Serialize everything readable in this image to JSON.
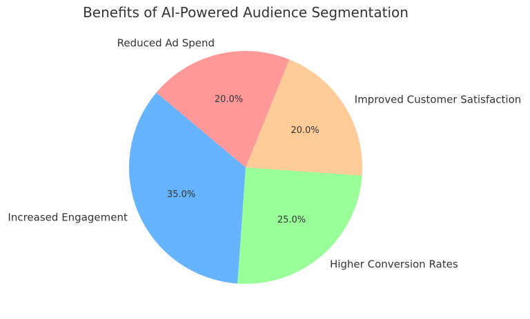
{
  "chart_data": {
    "type": "pie",
    "title": "Benefits of AI-Powered Audience Segmentation",
    "start_angle_deg": 140,
    "direction": "counterclockwise",
    "slices": [
      {
        "label": "Increased Engagement",
        "value": 35.0,
        "pct_label": "35.0%",
        "color": "#66b3ff"
      },
      {
        "label": "Higher Conversion Rates",
        "value": 25.0,
        "pct_label": "25.0%",
        "color": "#99ff99"
      },
      {
        "label": "Improved Customer Satisfaction",
        "value": 20.0,
        "pct_label": "20.0%",
        "color": "#ffcc99"
      },
      {
        "label": "Reduced Ad Spend",
        "value": 20.0,
        "pct_label": "20.0%",
        "color": "#ff9999"
      }
    ]
  }
}
